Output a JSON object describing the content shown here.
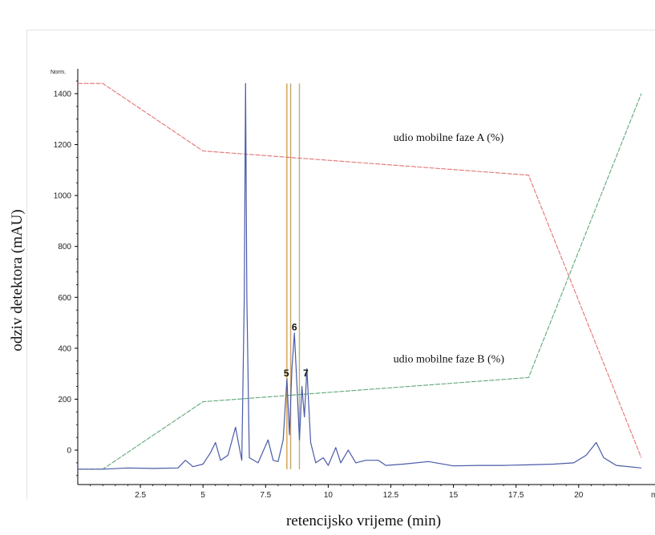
{
  "chart_data": {
    "type": "line",
    "norm_label": "Norm.",
    "xlabel": "retencijsko vrijeme (min)",
    "ylabel": "odziv detektora (mAU)",
    "xlim": [
      0,
      22.5
    ],
    "ylim": [
      -140,
      1480
    ],
    "x_ticks": [
      2.5,
      5,
      7.5,
      10,
      12.5,
      15,
      17.5,
      20
    ],
    "x_tick_labels": [
      "2.5",
      "5",
      "7.5",
      "10",
      "12.5",
      "15",
      "17.5",
      "20"
    ],
    "x_end_label": "mi",
    "y_ticks": [
      0,
      200,
      400,
      600,
      800,
      1000,
      1200,
      1400
    ],
    "y_tick_labels": [
      "0",
      "200",
      "400",
      "600",
      "800",
      "1000",
      "1200",
      "1400"
    ],
    "series": [
      {
        "color": "#e57373",
        "points": [
          [
            0,
            1440
          ],
          [
            1,
            1440
          ],
          [
            5,
            1175
          ],
          [
            18,
            1080
          ],
          [
            22.5,
            -30
          ]
        ]
      },
      {
        "color": "#5fa878",
        "points": [
          [
            0,
            -75
          ],
          [
            1,
            -75
          ],
          [
            5,
            190
          ],
          [
            18,
            285
          ],
          [
            22.5,
            1400
          ]
        ]
      },
      {
        "color": "#4a5aa8",
        "points": [
          [
            0,
            -75
          ],
          [
            1,
            -75
          ],
          [
            2,
            -70
          ],
          [
            3,
            -72
          ],
          [
            4,
            -70
          ],
          [
            4.3,
            -40
          ],
          [
            4.6,
            -65
          ],
          [
            5,
            -55
          ],
          [
            5.3,
            -10
          ],
          [
            5.5,
            30
          ],
          [
            5.7,
            -40
          ],
          [
            6.0,
            -20
          ],
          [
            6.3,
            90
          ],
          [
            6.45,
            10
          ],
          [
            6.55,
            -40
          ],
          [
            6.65,
            600
          ],
          [
            6.7,
            1440
          ],
          [
            6.75,
            600
          ],
          [
            6.85,
            -30
          ],
          [
            7.2,
            -50
          ],
          [
            7.6,
            40
          ],
          [
            7.8,
            -40
          ],
          [
            8.0,
            -45
          ],
          [
            8.2,
            40
          ],
          [
            8.35,
            280
          ],
          [
            8.45,
            60
          ],
          [
            8.55,
            320
          ],
          [
            8.65,
            460
          ],
          [
            8.75,
            260
          ],
          [
            8.85,
            40
          ],
          [
            8.95,
            250
          ],
          [
            9.05,
            130
          ],
          [
            9.15,
            320
          ],
          [
            9.3,
            30
          ],
          [
            9.5,
            -50
          ],
          [
            9.8,
            -30
          ],
          [
            10.0,
            -60
          ],
          [
            10.3,
            10
          ],
          [
            10.5,
            -50
          ],
          [
            10.8,
            0
          ],
          [
            11.1,
            -50
          ],
          [
            11.5,
            -40
          ],
          [
            12.0,
            -40
          ],
          [
            12.3,
            -60
          ],
          [
            13,
            -55
          ],
          [
            14,
            -45
          ],
          [
            15,
            -62
          ],
          [
            16,
            -60
          ],
          [
            17,
            -60
          ],
          [
            18,
            -58
          ],
          [
            19,
            -55
          ],
          [
            19.8,
            -50
          ],
          [
            20.3,
            -20
          ],
          [
            20.7,
            30
          ],
          [
            21.0,
            -30
          ],
          [
            21.5,
            -60
          ],
          [
            22.5,
            -70
          ]
        ]
      }
    ],
    "vertical_markers": [
      8.35,
      8.5,
      8.85
    ],
    "peak_labels": [
      {
        "label": "5",
        "x": 8.33,
        "y": 290
      },
      {
        "label": "6",
        "x": 8.65,
        "y": 470
      },
      {
        "label": "7",
        "x": 9.1,
        "y": 290
      }
    ],
    "annotations": [
      {
        "text": "udio mobilne faze A (%)",
        "x": 12.6,
        "y": 1215
      },
      {
        "text": "udio mobilne faze B (%)",
        "x": 12.6,
        "y": 345
      }
    ]
  }
}
